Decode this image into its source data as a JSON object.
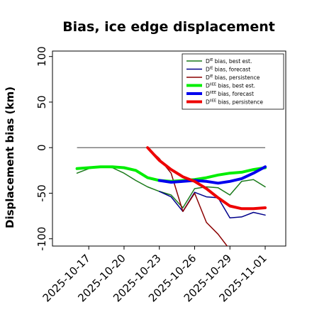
{
  "chart_data": {
    "type": "line",
    "title": "Bias, ice edge displacement",
    "xlabel": "",
    "ylabel": "Displacement bias (km)",
    "ylim": [
      -108,
      106
    ],
    "xlim": [
      "2025-10-15",
      "2025-11-01"
    ],
    "grid": false,
    "legend_position": "top-right",
    "reference_line": 0,
    "y_ticks": [
      100,
      50,
      0,
      -50,
      -100
    ],
    "x_ticks": [
      "2025-10-17",
      "2025-10-20",
      "2025-10-23",
      "2025-10-26",
      "2025-10-29",
      "2025-11-01"
    ],
    "highlighted_x_tick": "2025-10-23",
    "highlight_color": "#228b22",
    "zero_line_x_range": [
      "2025-10-16",
      "2025-11-01"
    ],
    "series": [
      {
        "name": "D^IE bias, best est.",
        "name_base": "D",
        "name_sup": "IE",
        "name_rest": " bias, best est.",
        "color": "#1a7a1a",
        "width": 1.5,
        "x": [
          "2025-10-16",
          "2025-10-17",
          "2025-10-18",
          "2025-10-19",
          "2025-10-20",
          "2025-10-21",
          "2025-10-22",
          "2025-10-23",
          "2025-10-24",
          "2025-10-25",
          "2025-10-26",
          "2025-10-27",
          "2025-10-28",
          "2025-10-29",
          "2025-10-30",
          "2025-10-31",
          "2025-11-01"
        ],
        "y": [
          -28,
          -23,
          -21,
          -22,
          -28,
          -36,
          -43,
          -48,
          -52,
          -66,
          -45,
          -43,
          -44,
          -52,
          -37,
          -35,
          -43
        ]
      },
      {
        "name": "D^IE bias, forecast",
        "name_base": "D",
        "name_sup": "IE",
        "name_rest": " bias, forecast",
        "color": "#00008b",
        "width": 1.5,
        "x": [
          "2025-10-23",
          "2025-10-24",
          "2025-10-25",
          "2025-10-26",
          "2025-10-27",
          "2025-10-28",
          "2025-10-29",
          "2025-10-30",
          "2025-10-31",
          "2025-11-01"
        ],
        "y": [
          -48,
          -54,
          -70,
          -49,
          -54,
          -55,
          -77,
          -76,
          -71,
          -74
        ]
      },
      {
        "name": "D^IE bias, persistence",
        "name_base": "D",
        "name_sup": "IE",
        "name_rest": " bias, persistence",
        "color": "#8b0000",
        "width": 1.5,
        "x": [
          "2025-10-22",
          "2025-10-23",
          "2025-10-24",
          "2025-10-25",
          "2025-10-26",
          "2025-10-27",
          "2025-10-28",
          "2025-10-29"
        ],
        "y": [
          0,
          -12,
          -28,
          -70,
          -50,
          -82,
          -95,
          -112
        ]
      },
      {
        "name": "D^IIEE bias, best est.",
        "name_base": "D",
        "name_sup": "IIEE",
        "name_rest": " bias, best est.",
        "color": "#00ee00",
        "width": 4,
        "x": [
          "2025-10-16",
          "2025-10-17",
          "2025-10-18",
          "2025-10-19",
          "2025-10-20",
          "2025-10-21",
          "2025-10-22",
          "2025-10-23",
          "2025-10-24",
          "2025-10-25",
          "2025-10-26",
          "2025-10-27",
          "2025-10-28",
          "2025-10-29",
          "2025-10-30",
          "2025-10-31",
          "2025-11-01"
        ],
        "y": [
          -23,
          -22,
          -21,
          -21,
          -22,
          -25,
          -33,
          -36,
          -37,
          -36,
          -35,
          -33,
          -30,
          -28,
          -27,
          -24,
          -22
        ]
      },
      {
        "name": "D^IIEE bias, forecast",
        "name_base": "D",
        "name_sup": "IIEE",
        "name_rest": " bias, forecast",
        "color": "#0000ee",
        "width": 4,
        "x": [
          "2025-10-23",
          "2025-10-24",
          "2025-10-25",
          "2025-10-26",
          "2025-10-27",
          "2025-10-28",
          "2025-10-29",
          "2025-10-30",
          "2025-10-31",
          "2025-11-01"
        ],
        "y": [
          -36,
          -38,
          -37,
          -36,
          -37,
          -39,
          -37,
          -34,
          -28,
          -21
        ]
      },
      {
        "name": "D^IIEE bias, persistence",
        "name_base": "D",
        "name_sup": "IIEE",
        "name_rest": " bias, persistence",
        "color": "#ee0000",
        "width": 4,
        "x": [
          "2025-10-22",
          "2025-10-23",
          "2025-10-24",
          "2025-10-25",
          "2025-10-26",
          "2025-10-27",
          "2025-10-28",
          "2025-10-29",
          "2025-10-30",
          "2025-10-31",
          "2025-11-01"
        ],
        "y": [
          0,
          -14,
          -24,
          -32,
          -37,
          -45,
          -55,
          -64,
          -67,
          -67,
          -66
        ]
      }
    ]
  }
}
